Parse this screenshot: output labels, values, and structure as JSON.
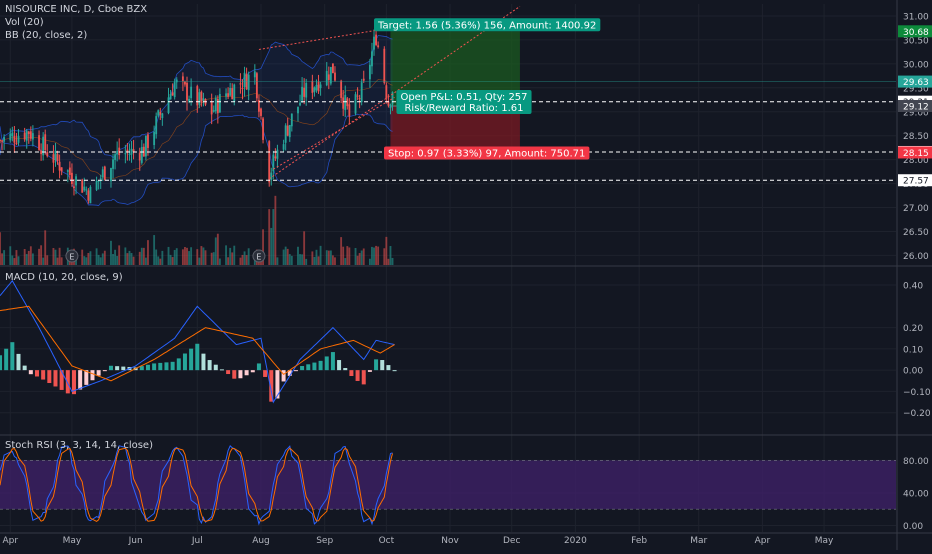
{
  "header": {
    "symbol_line": "NISOURCE INC, D, Cboe BZX",
    "volume_label": "Vol (20)",
    "bb_label": "BB (20, close, 2)"
  },
  "macd": {
    "label": "MACD (10, 20, close, 9)"
  },
  "stoch": {
    "label": "Stoch RSI (3, 3, 14, 14, close)"
  },
  "colors": {
    "background": "#131722",
    "up": "#26a69a",
    "down": "#ef5350",
    "target_zone": "#1b5e20",
    "stop_zone": "#801922",
    "stoch_band": "#3d2066",
    "macd_line": "#2962ff",
    "signal_line": "#ff6d00",
    "stoch_k": "#2962ff",
    "stoch_d": "#ff6d00",
    "bb_line": "#2962ff",
    "trend_line": "#ef5350"
  },
  "position": {
    "target_label": "Target: 1.56 (5.36%) 156, Amount: 1400.92",
    "pnl_label": "Open P&L: 0.51, Qty: 257",
    "rr_label": "Risk/Reward Ratio: 1.61",
    "stop_label": "Stop: 0.97 (3.33%) 97, Amount: 750.71",
    "entry": 29.12,
    "target": 30.68,
    "stop": 28.15
  },
  "price_badges": [
    {
      "value": 30.68,
      "label": "30.68",
      "bg": "#0d8a3b",
      "fg": "#ffffff"
    },
    {
      "value": 29.63,
      "label": "29.63",
      "bg": "#26a69a",
      "fg": "#ffffff"
    },
    {
      "value": 29.21,
      "label": "29.21",
      "bg": "#ffffff",
      "fg": "#131722"
    },
    {
      "value": 29.12,
      "label": "29.12",
      "bg": "#434651",
      "fg": "#ffffff"
    },
    {
      "value": 28.16,
      "label": "28.16",
      "bg": "#ffffff",
      "fg": "#131722"
    },
    {
      "value": 28.15,
      "label": "28.15",
      "bg": "#f23645",
      "fg": "#ffffff"
    },
    {
      "value": 27.57,
      "label": "27.57",
      "bg": "#ffffff",
      "fg": "#131722"
    }
  ],
  "horizontal_levels": [
    29.21,
    28.16,
    27.57
  ],
  "earnings": [
    {
      "date": "2019-05-01",
      "label": "E"
    },
    {
      "date": "2019-07-31",
      "label": "E"
    }
  ],
  "chart_data": [
    {
      "type": "candlestick",
      "ylim": [
        25.8,
        31.25
      ],
      "yticks": [
        31.0,
        30.5,
        30.0,
        29.5,
        29.0,
        28.5,
        28.0,
        27.5,
        27.0,
        26.5,
        26.0
      ],
      "ytick_labels": [
        "31.00",
        "30.50",
        "30.00",
        "29.50",
        "29.00",
        "28.50",
        "28.00",
        "27.50",
        "27.00",
        "26.50",
        "26.00"
      ],
      "xlim": [
        "2019-03-27",
        "2020-06-05"
      ],
      "x_ticks": [
        {
          "date": "2019-04-01",
          "label": "Apr"
        },
        {
          "date": "2019-05-01",
          "label": "May"
        },
        {
          "date": "2019-06-01",
          "label": "Jun"
        },
        {
          "date": "2019-07-01",
          "label": "Jul"
        },
        {
          "date": "2019-08-01",
          "label": "Aug"
        },
        {
          "date": "2019-09-01",
          "label": "Sep"
        },
        {
          "date": "2019-10-01",
          "label": "Oct"
        },
        {
          "date": "2019-11-01",
          "label": "Nov"
        },
        {
          "date": "2019-12-01",
          "label": "Dec"
        },
        {
          "date": "2020-01-01",
          "label": "2020"
        },
        {
          "date": "2020-02-01",
          "label": "Feb"
        },
        {
          "date": "2020-03-01",
          "label": "Mar"
        },
        {
          "date": "2020-04-01",
          "label": "Apr"
        },
        {
          "date": "2020-05-01",
          "label": "May"
        }
      ],
      "price_path": [
        {
          "date": "2019-03-27",
          "close": 28.4
        },
        {
          "date": "2019-04-10",
          "close": 28.6
        },
        {
          "date": "2019-04-25",
          "close": 27.9
        },
        {
          "date": "2019-05-10",
          "close": 27.3
        },
        {
          "date": "2019-05-22",
          "close": 28.1
        },
        {
          "date": "2019-06-05",
          "close": 28.2
        },
        {
          "date": "2019-06-20",
          "close": 29.6
        },
        {
          "date": "2019-07-08",
          "close": 29.0
        },
        {
          "date": "2019-07-15",
          "close": 29.4
        },
        {
          "date": "2019-07-29",
          "close": 29.8
        },
        {
          "date": "2019-08-05",
          "close": 27.7
        },
        {
          "date": "2019-08-12",
          "close": 28.5
        },
        {
          "date": "2019-08-22",
          "close": 29.4
        },
        {
          "date": "2019-09-05",
          "close": 29.9
        },
        {
          "date": "2019-09-13",
          "close": 28.9
        },
        {
          "date": "2019-09-20",
          "close": 29.5
        },
        {
          "date": "2019-09-26",
          "close": 30.6
        },
        {
          "date": "2019-10-02",
          "close": 29.2
        },
        {
          "date": "2019-10-05",
          "close": 29.63
        }
      ],
      "trend_lines": [
        {
          "start": {
            "date": "2019-07-31",
            "price": 30.3
          },
          "end": {
            "date": "2019-09-26",
            "price": 30.7
          }
        },
        {
          "start": {
            "date": "2019-08-05",
            "price": 27.6
          },
          "end": {
            "date": "2019-12-05",
            "price": 31.2
          }
        },
        {
          "start": {
            "date": "2019-08-07",
            "price": 27.8
          },
          "end": {
            "date": "2019-10-05",
            "price": 29.3
          }
        }
      ]
    },
    {
      "type": "bar",
      "name": "Vol (20)"
    },
    {
      "type": "macd",
      "ylim": [
        -0.3,
        0.48
      ],
      "yticks": [
        0.4,
        0.2,
        0.1,
        0.0,
        -0.1,
        -0.2
      ],
      "ytick_labels": [
        "0.40",
        "0.20",
        "0.10",
        "0.00",
        "−0.10",
        "−0.20"
      ],
      "macd_path": [
        {
          "date": "2019-03-27",
          "value": 0.35
        },
        {
          "date": "2019-04-02",
          "value": 0.42
        },
        {
          "date": "2019-04-15",
          "value": 0.2
        },
        {
          "date": "2019-05-01",
          "value": -0.1
        },
        {
          "date": "2019-05-15",
          "value": -0.05
        },
        {
          "date": "2019-06-01",
          "value": 0.02
        },
        {
          "date": "2019-06-20",
          "value": 0.15
        },
        {
          "date": "2019-07-01",
          "value": 0.3
        },
        {
          "date": "2019-07-20",
          "value": 0.12
        },
        {
          "date": "2019-08-01",
          "value": 0.15
        },
        {
          "date": "2019-08-07",
          "value": -0.15
        },
        {
          "date": "2019-08-20",
          "value": 0.05
        },
        {
          "date": "2019-09-05",
          "value": 0.2
        },
        {
          "date": "2019-09-20",
          "value": 0.05
        },
        {
          "date": "2019-09-26",
          "value": 0.14
        },
        {
          "date": "2019-10-05",
          "value": 0.12
        }
      ],
      "signal_path": [
        {
          "date": "2019-03-27",
          "value": 0.28
        },
        {
          "date": "2019-04-10",
          "value": 0.3
        },
        {
          "date": "2019-05-01",
          "value": 0.02
        },
        {
          "date": "2019-05-20",
          "value": -0.05
        },
        {
          "date": "2019-06-10",
          "value": 0.05
        },
        {
          "date": "2019-07-05",
          "value": 0.2
        },
        {
          "date": "2019-07-28",
          "value": 0.15
        },
        {
          "date": "2019-08-12",
          "value": -0.02
        },
        {
          "date": "2019-08-30",
          "value": 0.1
        },
        {
          "date": "2019-09-15",
          "value": 0.14
        },
        {
          "date": "2019-09-28",
          "value": 0.08
        },
        {
          "date": "2019-10-05",
          "value": 0.12
        }
      ]
    },
    {
      "type": "line",
      "ylim": [
        -8,
        110
      ],
      "yticks": [
        80,
        40,
        0
      ],
      "ytick_labels": [
        "80.00",
        "40.00",
        "0.00"
      ],
      "band": [
        20,
        80
      ]
    }
  ]
}
